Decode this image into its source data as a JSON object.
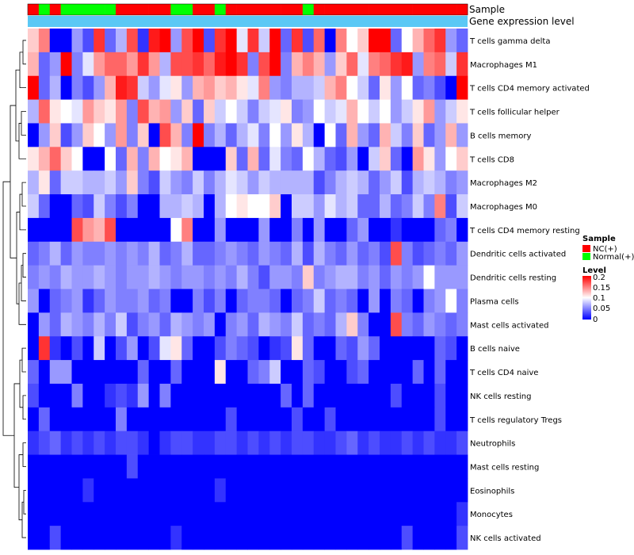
{
  "chart_data": {
    "type": "heatmap",
    "annotations": {
      "sample_label": "Sample",
      "gene_label": "Gene expression level",
      "sample_pattern": [
        {
          "group": "NC(+)",
          "count": 1
        },
        {
          "group": "Normal(+)",
          "count": 1
        },
        {
          "group": "NC(+)",
          "count": 1
        },
        {
          "group": "Normal(+)",
          "count": 5
        },
        {
          "group": "NC(+)",
          "count": 5
        },
        {
          "group": "Normal(+)",
          "count": 2
        },
        {
          "group": "NC(+)",
          "count": 2
        },
        {
          "group": "Normal(+)",
          "count": 1
        },
        {
          "group": "NC(+)",
          "count": 7
        },
        {
          "group": "Normal(+)",
          "count": 1
        },
        {
          "group": "NC(+)",
          "count": 14
        }
      ]
    },
    "rows": [
      "T cells gamma delta",
      "Macrophages M1",
      "T cells CD4 memory activated",
      "T cells follicular helper",
      "B cells memory",
      "T cells CD8",
      "Macrophages M2",
      "Macrophages M0",
      "T cells CD4 memory resting",
      "Dendritic cells activated",
      "Dendritic cells resting",
      "Plasma cells",
      "Mast cells activated",
      "B cells naive",
      "T cells CD4 naive",
      "NK cells resting",
      "T cells regulatory  Tregs",
      "Neutrophils",
      "Mast cells resting",
      "Eosinophils",
      "Monocytes",
      "NK cells activated"
    ],
    "columns": 40,
    "values": [
      [
        0.12,
        0.15,
        0.0,
        0.0,
        0.06,
        0.03,
        0.18,
        0.04,
        0.07,
        0.17,
        0.02,
        0.19,
        0.2,
        0.06,
        0.17,
        0.2,
        0.03,
        0.18,
        0.2,
        0.09,
        0.18,
        0.08,
        0.2,
        0.04,
        0.18,
        0.03,
        0.16,
        0.0,
        0.15,
        0.1,
        0.12,
        0.2,
        0.2,
        0.04,
        0.1,
        0.13,
        0.16,
        0.18,
        0.06,
        0.04
      ],
      [
        0.13,
        0.04,
        0.06,
        0.2,
        0.05,
        0.09,
        0.14,
        0.16,
        0.16,
        0.14,
        0.18,
        0.14,
        0.07,
        0.17,
        0.17,
        0.18,
        0.16,
        0.19,
        0.2,
        0.18,
        0.05,
        0.17,
        0.2,
        0.05,
        0.13,
        0.15,
        0.13,
        0.06,
        0.12,
        0.16,
        0.09,
        0.15,
        0.16,
        0.18,
        0.19,
        0.06,
        0.15,
        0.16,
        0.08,
        0.18
      ],
      [
        0.2,
        0.04,
        0.07,
        0.0,
        0.05,
        0.03,
        0.06,
        0.13,
        0.19,
        0.18,
        0.08,
        0.06,
        0.09,
        0.11,
        0.06,
        0.13,
        0.14,
        0.12,
        0.13,
        0.11,
        0.09,
        0.15,
        0.06,
        0.05,
        0.07,
        0.07,
        0.08,
        0.13,
        0.15,
        0.1,
        0.08,
        0.04,
        0.11,
        0.06,
        0.1,
        0.04,
        0.05,
        0.03,
        0.0,
        0.2
      ],
      [
        0.07,
        0.16,
        0.11,
        0.1,
        0.09,
        0.14,
        0.12,
        0.11,
        0.14,
        0.05,
        0.17,
        0.13,
        0.14,
        0.06,
        0.12,
        0.04,
        0.12,
        0.08,
        0.1,
        0.08,
        0.05,
        0.08,
        0.09,
        0.11,
        0.05,
        0.06,
        0.1,
        0.08,
        0.09,
        0.13,
        0.1,
        0.08,
        0.1,
        0.06,
        0.08,
        0.11,
        0.14,
        0.06,
        0.08,
        0.11
      ],
      [
        0.0,
        0.06,
        0.12,
        0.03,
        0.06,
        0.12,
        0.1,
        0.06,
        0.14,
        0.05,
        0.12,
        0.0,
        0.17,
        0.13,
        0.05,
        0.2,
        0.05,
        0.07,
        0.04,
        0.07,
        0.09,
        0.05,
        0.1,
        0.06,
        0.11,
        0.07,
        0.0,
        0.1,
        0.04,
        0.13,
        0.06,
        0.04,
        0.13,
        0.08,
        0.05,
        0.12,
        0.04,
        0.06,
        0.13,
        0.06
      ],
      [
        0.11,
        0.13,
        0.16,
        0.12,
        0.1,
        0.0,
        0.0,
        0.1,
        0.04,
        0.13,
        0.05,
        0.13,
        0.1,
        0.11,
        0.13,
        0.0,
        0.0,
        0.0,
        0.12,
        0.04,
        0.13,
        0.04,
        0.09,
        0.05,
        0.04,
        0.1,
        0.07,
        0.04,
        0.03,
        0.06,
        0.0,
        0.08,
        0.12,
        0.04,
        0.0,
        0.14,
        0.11,
        0.06,
        0.1,
        0.12
      ],
      [
        0.07,
        0.11,
        0.04,
        0.08,
        0.08,
        0.07,
        0.07,
        0.08,
        0.06,
        0.12,
        0.05,
        0.03,
        0.08,
        0.06,
        0.05,
        0.08,
        0.05,
        0.07,
        0.09,
        0.08,
        0.06,
        0.08,
        0.07,
        0.07,
        0.07,
        0.07,
        0.03,
        0.05,
        0.07,
        0.08,
        0.07,
        0.04,
        0.06,
        0.08,
        0.03,
        0.07,
        0.08,
        0.07,
        0.05,
        0.06
      ],
      [
        0.08,
        0.04,
        0.0,
        0.0,
        0.04,
        0.03,
        0.08,
        0.05,
        0.03,
        0.05,
        0.0,
        0.0,
        0.07,
        0.07,
        0.08,
        0.07,
        0.0,
        0.07,
        0.1,
        0.11,
        0.1,
        0.1,
        0.12,
        0.0,
        0.08,
        0.08,
        0.06,
        0.09,
        0.07,
        0.08,
        0.04,
        0.04,
        0.07,
        0.04,
        0.05,
        0.08,
        0.05,
        0.15,
        0.03,
        0.08
      ],
      [
        0.0,
        0.0,
        0.0,
        0.0,
        0.17,
        0.14,
        0.13,
        0.17,
        0.0,
        0.0,
        0.0,
        0.0,
        0.0,
        0.1,
        0.15,
        0.0,
        0.0,
        0.06,
        0.0,
        0.0,
        0.0,
        0.06,
        0.0,
        0.0,
        0.05,
        0.0,
        0.06,
        0.0,
        0.0,
        0.04,
        0.06,
        0.0,
        0.0,
        0.02,
        0.0,
        0.0,
        0.0,
        0.04,
        0.05,
        0.0
      ],
      [
        0.04,
        0.05,
        0.07,
        0.04,
        0.06,
        0.05,
        0.05,
        0.06,
        0.05,
        0.06,
        0.05,
        0.07,
        0.04,
        0.05,
        0.07,
        0.04,
        0.04,
        0.05,
        0.06,
        0.05,
        0.04,
        0.06,
        0.05,
        0.04,
        0.07,
        0.03,
        0.07,
        0.05,
        0.04,
        0.06,
        0.04,
        0.05,
        0.03,
        0.17,
        0.05,
        0.03,
        0.04,
        0.05,
        0.04,
        0.06
      ],
      [
        0.05,
        0.06,
        0.05,
        0.07,
        0.06,
        0.06,
        0.07,
        0.06,
        0.05,
        0.06,
        0.06,
        0.07,
        0.06,
        0.05,
        0.06,
        0.06,
        0.05,
        0.06,
        0.05,
        0.07,
        0.05,
        0.03,
        0.06,
        0.06,
        0.05,
        0.12,
        0.05,
        0.06,
        0.07,
        0.07,
        0.05,
        0.06,
        0.04,
        0.06,
        0.05,
        0.06,
        0.1,
        0.06,
        0.06,
        0.06
      ],
      [
        0.06,
        0.0,
        0.04,
        0.05,
        0.06,
        0.02,
        0.04,
        0.06,
        0.05,
        0.05,
        0.06,
        0.04,
        0.05,
        0.0,
        0.0,
        0.05,
        0.03,
        0.05,
        0.0,
        0.04,
        0.05,
        0.05,
        0.04,
        0.0,
        0.04,
        0.05,
        0.08,
        0.04,
        0.05,
        0.04,
        0.0,
        0.06,
        0.0,
        0.05,
        0.04,
        0.0,
        0.05,
        0.06,
        0.1,
        0.05
      ],
      [
        0.0,
        0.06,
        0.04,
        0.07,
        0.06,
        0.05,
        0.07,
        0.05,
        0.08,
        0.03,
        0.05,
        0.06,
        0.04,
        0.07,
        0.06,
        0.05,
        0.06,
        0.0,
        0.05,
        0.06,
        0.04,
        0.07,
        0.06,
        0.05,
        0.08,
        0.04,
        0.05,
        0.04,
        0.07,
        0.12,
        0.05,
        0.0,
        0.0,
        0.17,
        0.05,
        0.04,
        0.06,
        0.05,
        0.04,
        0.05
      ],
      [
        0.0,
        0.18,
        0.02,
        0.0,
        0.03,
        0.0,
        0.08,
        0.0,
        0.03,
        0.06,
        0.0,
        0.03,
        0.09,
        0.11,
        0.04,
        0.0,
        0.0,
        0.03,
        0.05,
        0.04,
        0.03,
        0.0,
        0.02,
        0.03,
        0.11,
        0.04,
        0.0,
        0.0,
        0.04,
        0.03,
        0.06,
        0.04,
        0.0,
        0.0,
        0.0,
        0.0,
        0.0,
        0.04,
        0.03,
        0.0
      ],
      [
        0.04,
        0.0,
        0.06,
        0.06,
        0.0,
        0.0,
        0.0,
        0.0,
        0.0,
        0.0,
        0.04,
        0.0,
        0.0,
        0.04,
        0.0,
        0.0,
        0.0,
        0.11,
        0.0,
        0.0,
        0.04,
        0.05,
        0.08,
        0.0,
        0.0,
        0.04,
        0.03,
        0.0,
        0.0,
        0.03,
        0.04,
        0.0,
        0.0,
        0.0,
        0.0,
        0.04,
        0.0,
        0.04,
        0.0,
        0.0
      ],
      [
        0.03,
        0.0,
        0.0,
        0.0,
        0.05,
        0.0,
        0.0,
        0.02,
        0.03,
        0.02,
        0.06,
        0.0,
        0.05,
        0.0,
        0.0,
        0.0,
        0.0,
        0.0,
        0.0,
        0.0,
        0.0,
        0.0,
        0.0,
        0.04,
        0.0,
        0.04,
        0.0,
        0.0,
        0.0,
        0.0,
        0.0,
        0.0,
        0.0,
        0.03,
        0.0,
        0.0,
        0.0,
        0.03,
        0.0,
        0.0
      ],
      [
        0.0,
        0.04,
        0.0,
        0.0,
        0.0,
        0.0,
        0.0,
        0.0,
        0.05,
        0.0,
        0.0,
        0.0,
        0.0,
        0.0,
        0.0,
        0.0,
        0.0,
        0.0,
        0.03,
        0.0,
        0.0,
        0.0,
        0.0,
        0.0,
        0.03,
        0.0,
        0.0,
        0.03,
        0.0,
        0.0,
        0.0,
        0.0,
        0.0,
        0.0,
        0.0,
        0.0,
        0.0,
        0.03,
        0.0,
        0.0
      ],
      [
        0.02,
        0.03,
        0.04,
        0.02,
        0.03,
        0.02,
        0.03,
        0.02,
        0.03,
        0.03,
        0.02,
        0.0,
        0.02,
        0.03,
        0.03,
        0.02,
        0.02,
        0.03,
        0.03,
        0.02,
        0.03,
        0.02,
        0.03,
        0.02,
        0.03,
        0.03,
        0.02,
        0.02,
        0.03,
        0.04,
        0.02,
        0.03,
        0.02,
        0.02,
        0.03,
        0.02,
        0.03,
        0.02,
        0.02,
        0.03
      ],
      [
        0.0,
        0.0,
        0.0,
        0.0,
        0.0,
        0.0,
        0.0,
        0.0,
        0.0,
        0.03,
        0.0,
        0.0,
        0.0,
        0.0,
        0.0,
        0.0,
        0.0,
        0.0,
        0.0,
        0.0,
        0.0,
        0.0,
        0.0,
        0.0,
        0.0,
        0.0,
        0.0,
        0.0,
        0.0,
        0.0,
        0.0,
        0.0,
        0.0,
        0.0,
        0.0,
        0.0,
        0.0,
        0.0,
        0.0,
        0.0
      ],
      [
        0.0,
        0.0,
        0.0,
        0.0,
        0.0,
        0.02,
        0.0,
        0.0,
        0.0,
        0.0,
        0.0,
        0.0,
        0.0,
        0.0,
        0.0,
        0.0,
        0.0,
        0.02,
        0.0,
        0.0,
        0.0,
        0.0,
        0.0,
        0.0,
        0.0,
        0.0,
        0.0,
        0.0,
        0.0,
        0.0,
        0.0,
        0.0,
        0.0,
        0.0,
        0.0,
        0.0,
        0.0,
        0.0,
        0.0,
        0.0
      ],
      [
        0.0,
        0.0,
        0.0,
        0.0,
        0.0,
        0.0,
        0.0,
        0.0,
        0.0,
        0.0,
        0.0,
        0.0,
        0.0,
        0.0,
        0.0,
        0.0,
        0.0,
        0.0,
        0.0,
        0.0,
        0.0,
        0.0,
        0.0,
        0.0,
        0.0,
        0.0,
        0.0,
        0.0,
        0.0,
        0.0,
        0.0,
        0.0,
        0.0,
        0.0,
        0.0,
        0.0,
        0.0,
        0.0,
        0.0,
        0.02
      ],
      [
        0.0,
        0.0,
        0.03,
        0.0,
        0.0,
        0.0,
        0.0,
        0.0,
        0.0,
        0.0,
        0.0,
        0.0,
        0.0,
        0.02,
        0.0,
        0.0,
        0.0,
        0.0,
        0.0,
        0.0,
        0.0,
        0.0,
        0.0,
        0.0,
        0.0,
        0.0,
        0.0,
        0.0,
        0.0,
        0.0,
        0.0,
        0.0,
        0.0,
        0.0,
        0.03,
        0.0,
        0.0,
        0.0,
        0.0,
        0.03
      ]
    ],
    "color_scale": {
      "min": 0,
      "max": 0.2,
      "low_color": "#0000ff",
      "mid_color": "#ffffff",
      "high_color": "#ff0000",
      "mid_value": 0.1
    },
    "legend": {
      "sample_title": "Sample",
      "groups": [
        {
          "name": "NC(+)",
          "color": "#ff0000"
        },
        {
          "name": "Normal(+)",
          "color": "#00ff00"
        }
      ],
      "level_title": "Level",
      "level_ticks": [
        "0.2",
        "0.15",
        "0.1",
        "0.05",
        "0"
      ]
    },
    "gene_bar_color": "#5bc8f5"
  }
}
